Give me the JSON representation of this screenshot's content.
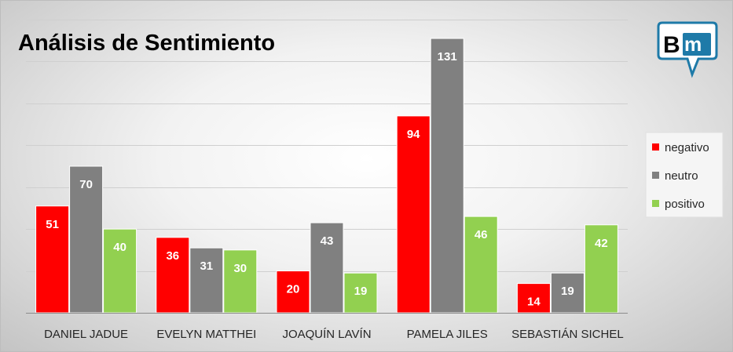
{
  "chart_data": {
    "type": "bar",
    "title": "Análisis de Sentimiento",
    "categories": [
      "DANIEL JADUE",
      "EVELYN MATTHEI",
      "JOAQUÍN LAVÍN",
      "PAMELA JILES",
      "SEBASTIÁN SICHEL"
    ],
    "series": [
      {
        "name": "negativo",
        "color": "#ff0000",
        "values": [
          51,
          36,
          20,
          94,
          14
        ]
      },
      {
        "name": "neutro",
        "color": "#808080",
        "values": [
          70,
          31,
          43,
          131,
          19
        ]
      },
      {
        "name": "positivo",
        "color": "#92d050",
        "values": [
          40,
          30,
          19,
          46,
          42
        ]
      }
    ],
    "ylim": [
      0,
      140
    ],
    "y_axis_visible": false,
    "grid": true,
    "legend": "right",
    "data_labels": true
  },
  "logo": {
    "text_b": "B",
    "text_m": "m",
    "icon": "speech-bubble-logo"
  }
}
